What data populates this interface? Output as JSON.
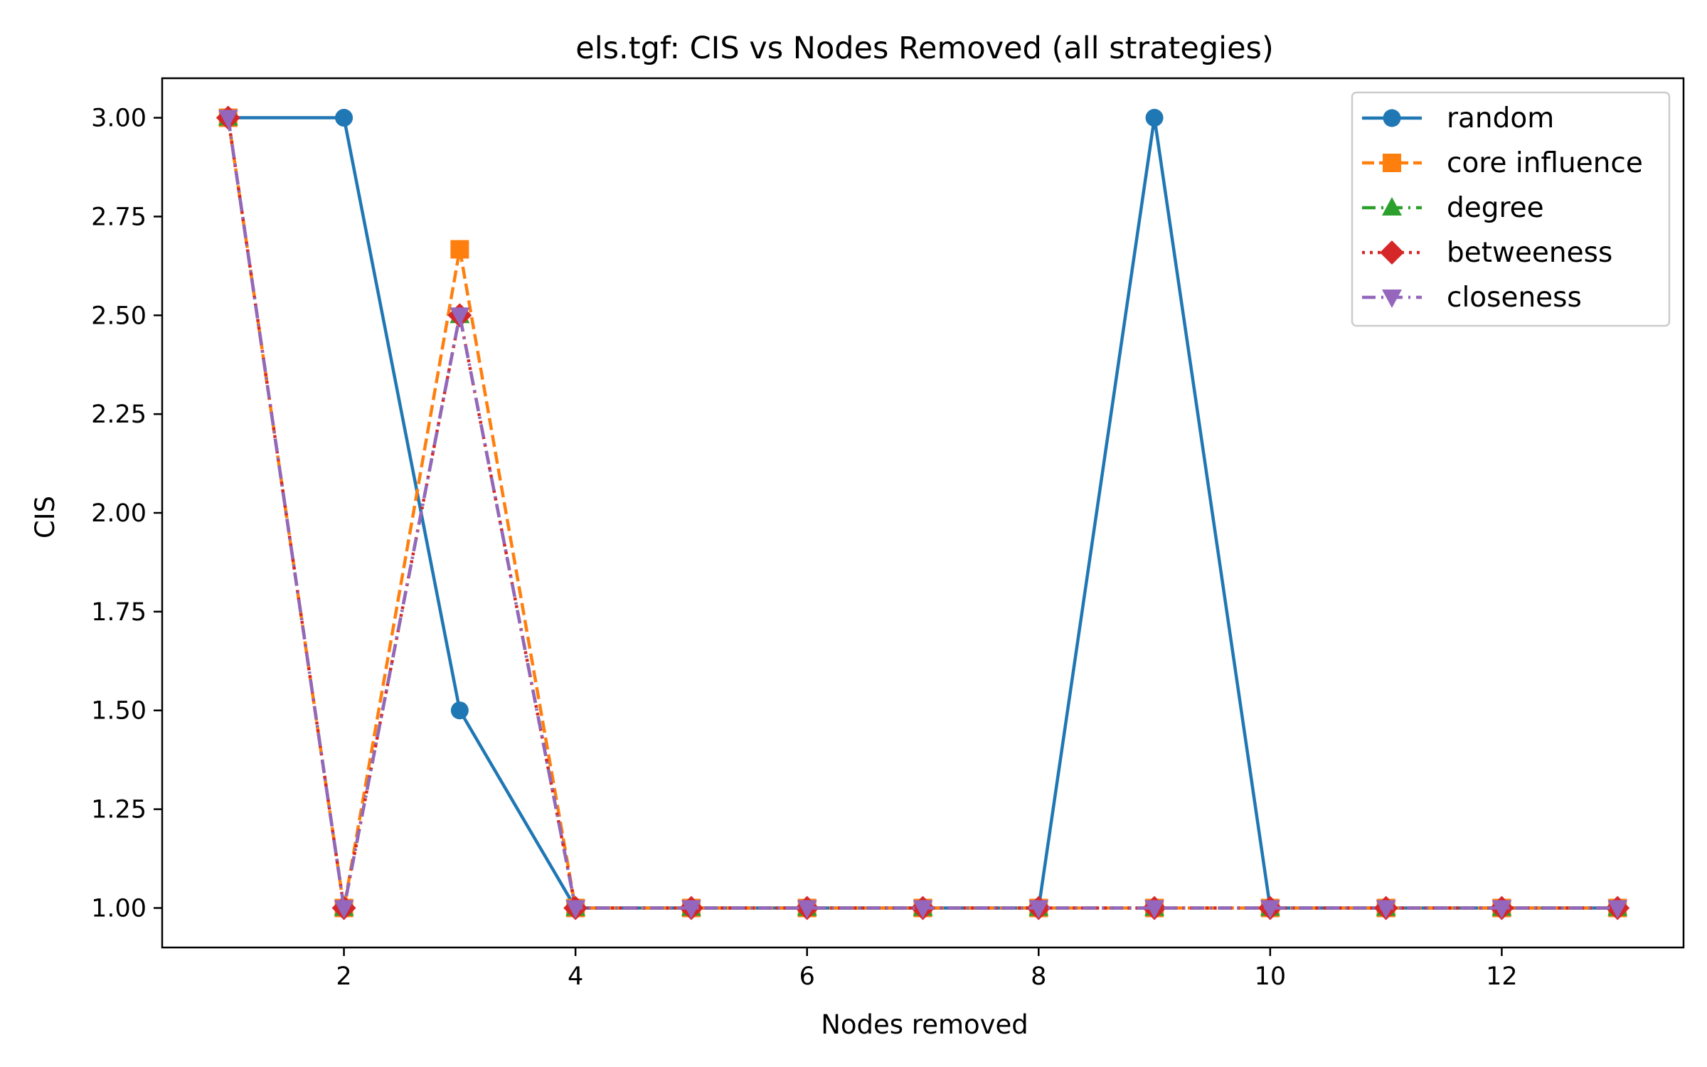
{
  "chart_data": {
    "type": "line",
    "title": "els.tgf: CIS vs Nodes Removed (all strategies)",
    "xlabel": "Nodes removed",
    "ylabel": "CIS",
    "xlim": [
      0.43,
      13.57
    ],
    "ylim": [
      0.9,
      3.1
    ],
    "xticks": [
      2,
      4,
      6,
      8,
      10,
      12
    ],
    "yticks": [
      1.0,
      1.25,
      1.5,
      1.75,
      2.0,
      2.25,
      2.5,
      2.75,
      3.0
    ],
    "xtick_labels": [
      "2",
      "4",
      "6",
      "8",
      "10",
      "12"
    ],
    "ytick_labels": [
      "1.00",
      "1.25",
      "1.50",
      "1.75",
      "2.00",
      "2.25",
      "2.50",
      "2.75",
      "3.00"
    ],
    "grid": false,
    "legend_position": "top-right",
    "x": [
      1,
      2,
      3,
      4,
      5,
      6,
      7,
      8,
      9,
      10,
      11,
      12,
      13
    ],
    "series": [
      {
        "name": "random",
        "values": [
          3.0,
          3.0,
          1.5,
          1.0,
          1.0,
          1.0,
          1.0,
          1.0,
          3.0,
          1.0,
          1.0,
          1.0,
          1.0
        ],
        "color": "#1f77b4",
        "dash": "solid",
        "marker": "circle"
      },
      {
        "name": "core influence",
        "values": [
          3.0,
          1.0,
          2.667,
          1.0,
          1.0,
          1.0,
          1.0,
          1.0,
          1.0,
          1.0,
          1.0,
          1.0,
          1.0
        ],
        "color": "#ff7f0e",
        "dash": "dashed",
        "marker": "square"
      },
      {
        "name": "degree",
        "values": [
          3.0,
          1.0,
          2.5,
          1.0,
          1.0,
          1.0,
          1.0,
          1.0,
          1.0,
          1.0,
          1.0,
          1.0,
          1.0
        ],
        "color": "#2ca02c",
        "dash": "dashdot",
        "marker": "triangle-up"
      },
      {
        "name": "betweeness",
        "values": [
          3.0,
          1.0,
          2.5,
          1.0,
          1.0,
          1.0,
          1.0,
          1.0,
          1.0,
          1.0,
          1.0,
          1.0,
          1.0
        ],
        "color": "#d62728",
        "dash": "dotted",
        "marker": "diamond"
      },
      {
        "name": "closeness",
        "values": [
          3.0,
          1.0,
          2.5,
          1.0,
          1.0,
          1.0,
          1.0,
          1.0,
          1.0,
          1.0,
          1.0,
          1.0,
          1.0
        ],
        "color": "#9467bd",
        "dash": "dashdot",
        "marker": "triangle-down"
      }
    ]
  }
}
